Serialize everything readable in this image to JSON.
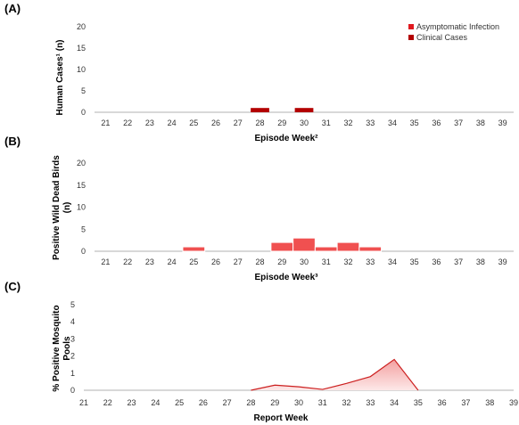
{
  "colors": {
    "asymptomatic": "#e0191f",
    "clinical": "#b30000",
    "birds_fill": "#f05050",
    "birds_stroke": "#ffffff",
    "mosquito_line": "#cc1f1f",
    "mosquito_area_top": "#f3a0a0",
    "axis": "#b0b0b0"
  },
  "chart_data": [
    {
      "panel_label": "(A)",
      "type": "bar",
      "stacked": true,
      "categories": [
        "21",
        "22",
        "23",
        "24",
        "25",
        "26",
        "27",
        "28",
        "29",
        "30",
        "31",
        "32",
        "33",
        "34",
        "35",
        "36",
        "37",
        "38",
        "39"
      ],
      "series": [
        {
          "name": "Asymptomatic Infection",
          "values": [
            0,
            0,
            0,
            0,
            0,
            0,
            0,
            0,
            0,
            0,
            0,
            0,
            0,
            0,
            0,
            0,
            0,
            0,
            0
          ]
        },
        {
          "name": "Clinical Cases",
          "values": [
            0,
            0,
            0,
            0,
            0,
            0,
            0,
            1,
            0,
            1,
            0,
            0,
            0,
            0,
            0,
            0,
            0,
            0,
            0
          ]
        }
      ],
      "ylabel": "Human Cases¹ (n)",
      "xlabel": "Episode Week²",
      "ylim": [
        0,
        20
      ],
      "yticks": [
        "0",
        "5",
        "10",
        "15",
        "20"
      ],
      "legend": "top-right"
    },
    {
      "panel_label": "(B)",
      "type": "bar",
      "categories": [
        "21",
        "22",
        "23",
        "24",
        "25",
        "26",
        "27",
        "28",
        "29",
        "30",
        "31",
        "32",
        "33",
        "34",
        "35",
        "36",
        "37",
        "38",
        "39"
      ],
      "values": [
        0,
        0,
        0,
        0,
        1,
        0,
        0,
        0,
        2,
        3,
        1,
        2,
        1,
        0,
        0,
        0,
        0,
        0,
        0
      ],
      "ylabel": "Positive Wild Dead Birds (n)",
      "xlabel": "Episode Week³",
      "ylim": [
        0,
        20
      ],
      "yticks": [
        "0",
        "5",
        "10",
        "15",
        "20"
      ]
    },
    {
      "panel_label": "(C)",
      "type": "area",
      "categories": [
        "21",
        "22",
        "23",
        "24",
        "25",
        "26",
        "27",
        "28",
        "29",
        "30",
        "31",
        "32",
        "33",
        "34",
        "35",
        "36",
        "37",
        "38",
        "39"
      ],
      "points": [
        {
          "x": "28",
          "y": 0
        },
        {
          "x": "29",
          "y": 0.3
        },
        {
          "x": "30",
          "y": 0.2
        },
        {
          "x": "31",
          "y": 0.05
        },
        {
          "x": "32",
          "y": 0.4
        },
        {
          "x": "33",
          "y": 0.8
        },
        {
          "x": "34",
          "y": 1.8
        },
        {
          "x": "35",
          "y": 0
        }
      ],
      "ylabel": "% Positive Mosquito Pools",
      "xlabel": "Report Week",
      "ylim": [
        0,
        5
      ],
      "yticks": [
        "0",
        "1",
        "2",
        "3",
        "4",
        "5"
      ]
    }
  ]
}
